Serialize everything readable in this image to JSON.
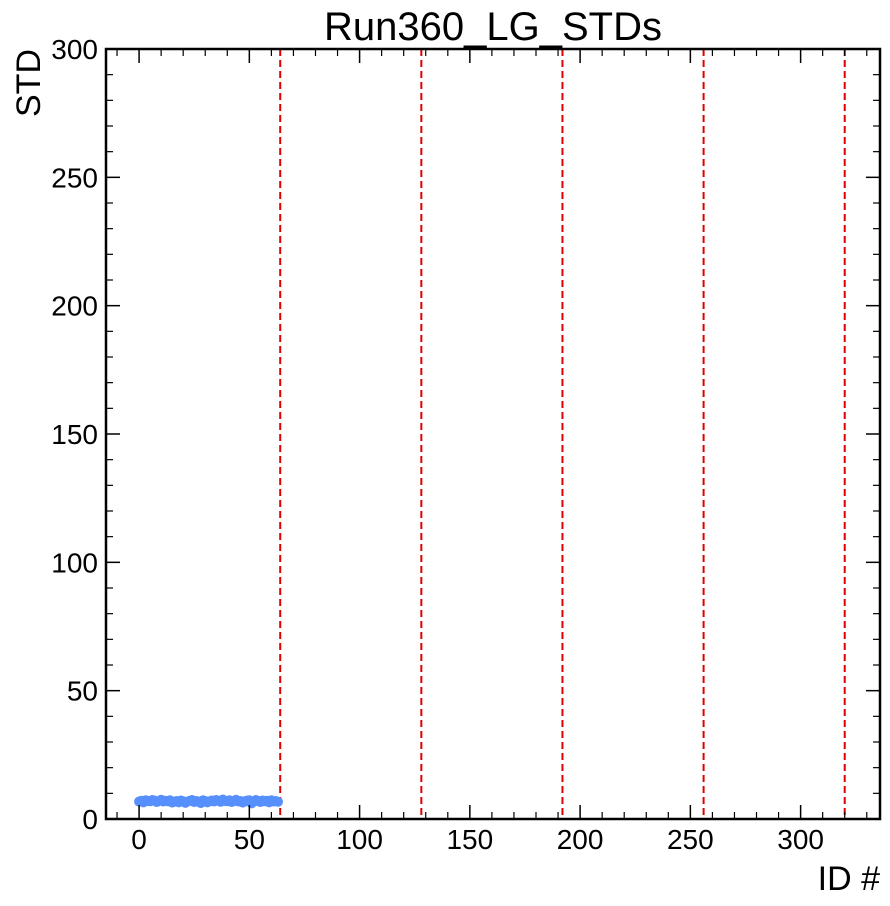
{
  "chart_data": {
    "type": "scatter",
    "title": "Run360_LG_STDs",
    "xlabel": "ID #",
    "ylabel": "STD",
    "xlim": [
      -15,
      336
    ],
    "ylim": [
      0,
      300
    ],
    "x_ticks": [
      0,
      50,
      100,
      150,
      200,
      250,
      300
    ],
    "y_ticks": [
      0,
      50,
      100,
      150,
      200,
      250,
      300
    ],
    "grid": false,
    "marker_color": "#5790fc",
    "vline_color": "#e00000",
    "vlines": [
      64,
      128,
      192,
      256,
      320
    ],
    "series": [
      {
        "x": [
          0,
          1,
          2,
          3,
          4,
          5,
          6,
          7,
          8,
          9,
          10,
          11,
          12,
          13,
          14,
          15,
          16,
          17,
          18,
          19,
          20,
          21,
          22,
          23,
          24,
          25,
          26,
          27,
          28,
          29,
          30,
          31,
          32,
          33,
          34,
          35,
          36,
          37,
          38,
          39,
          40,
          41,
          42,
          43,
          44,
          45,
          46,
          47,
          48,
          49,
          50,
          51,
          52,
          53,
          54,
          55,
          56,
          57,
          58,
          59,
          60,
          61,
          62,
          63
        ],
        "y": [
          6.8,
          7.1,
          6.5,
          7.3,
          7.0,
          6.9,
          7.4,
          7.2,
          6.6,
          7.0,
          7.5,
          6.8,
          7.1,
          6.9,
          7.3,
          6.4,
          6.7,
          7.0,
          6.5,
          7.2,
          6.9,
          6.3,
          6.8,
          7.1,
          7.4,
          6.6,
          7.0,
          6.8,
          6.2,
          7.3,
          7.0,
          6.5,
          6.9,
          7.2,
          6.8,
          7.4,
          7.1,
          6.7,
          7.6,
          7.0,
          6.9,
          7.3,
          6.6,
          7.1,
          7.5,
          6.8,
          7.0,
          6.4,
          6.9,
          7.2,
          7.3,
          6.1,
          6.8,
          7.4,
          7.0,
          6.6,
          7.2,
          6.9,
          7.1,
          6.5,
          7.3,
          6.8,
          7.0,
          6.7
        ]
      }
    ]
  }
}
